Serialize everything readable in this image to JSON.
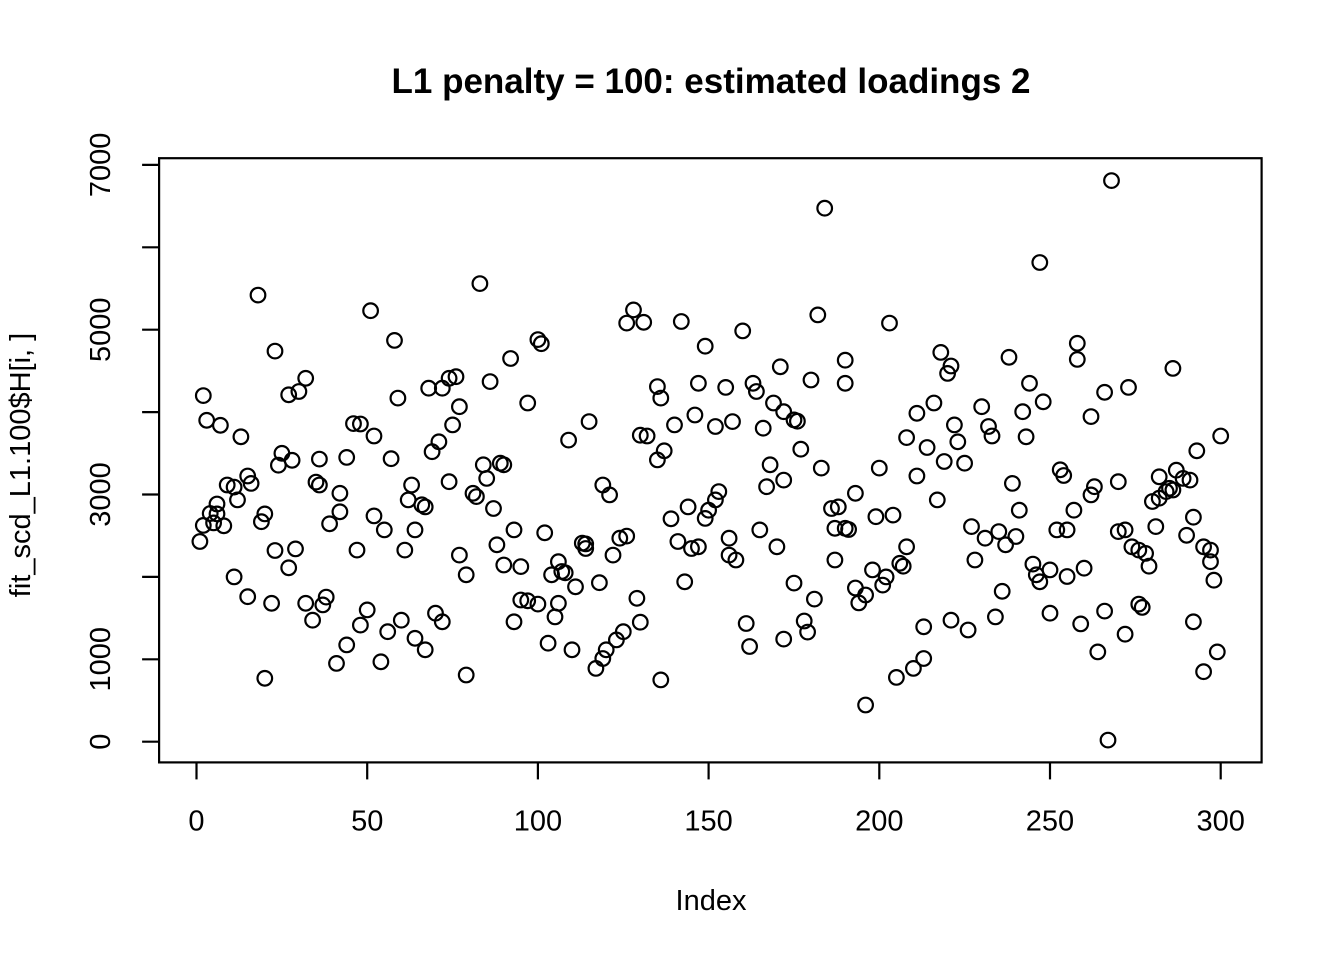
{
  "window": {
    "background": "#ffffff",
    "foreground": "#000000"
  },
  "chart_data": {
    "type": "scatter",
    "title": "L1 penalty = 100: estimated loadings 2",
    "xlabel": "Index",
    "ylabel": "fit_scd_L1.100$H[i, ]",
    "xlim": [
      0,
      300
    ],
    "ylim": [
      0,
      7000
    ],
    "x_ticks": [
      0,
      50,
      100,
      150,
      200,
      250,
      300
    ],
    "x_tick_labels": [
      "0",
      "50",
      "100",
      "150",
      "200",
      "250",
      "300"
    ],
    "y_ticks": [
      0,
      1000,
      2000,
      3000,
      4000,
      5000,
      6000,
      7000
    ],
    "y_tick_labels": [
      "0",
      "1000",
      "",
      "3000",
      "",
      "5000",
      "",
      "7000"
    ],
    "grid": false,
    "legend": null,
    "marker": "open-circle",
    "marker_color": "#000000",
    "points": [
      [
        1,
        2430
      ],
      [
        2,
        4200
      ],
      [
        2,
        2625
      ],
      [
        3,
        3900
      ],
      [
        4,
        2770
      ],
      [
        5,
        2655
      ],
      [
        6,
        2885
      ],
      [
        6,
        2765
      ],
      [
        7,
        3840
      ],
      [
        8,
        2620
      ],
      [
        9,
        3115
      ],
      [
        11,
        3090
      ],
      [
        11,
        2000
      ],
      [
        12,
        2935
      ],
      [
        13,
        3700
      ],
      [
        15,
        3225
      ],
      [
        15,
        1760
      ],
      [
        16,
        3135
      ],
      [
        18,
        5420
      ],
      [
        19,
        2670
      ],
      [
        20,
        2765
      ],
      [
        20,
        770
      ],
      [
        22,
        1680
      ],
      [
        23,
        4740
      ],
      [
        23,
        2320
      ],
      [
        24,
        3355
      ],
      [
        25,
        3500
      ],
      [
        27,
        4210
      ],
      [
        27,
        2110
      ],
      [
        28,
        3415
      ],
      [
        29,
        2340
      ],
      [
        30,
        4250
      ],
      [
        32,
        4410
      ],
      [
        32,
        1680
      ],
      [
        34,
        1475
      ],
      [
        35,
        3150
      ],
      [
        36,
        3430
      ],
      [
        36,
        3115
      ],
      [
        37,
        1660
      ],
      [
        38,
        1755
      ],
      [
        39,
        2645
      ],
      [
        41,
        950
      ],
      [
        42,
        3015
      ],
      [
        42,
        2790
      ],
      [
        44,
        3450
      ],
      [
        44,
        1175
      ],
      [
        46,
        3860
      ],
      [
        47,
        2325
      ],
      [
        48,
        3855
      ],
      [
        48,
        1415
      ],
      [
        50,
        1600
      ],
      [
        51,
        5230
      ],
      [
        52,
        3710
      ],
      [
        52,
        2740
      ],
      [
        54,
        970
      ],
      [
        55,
        2570
      ],
      [
        56,
        1335
      ],
      [
        57,
        3435
      ],
      [
        58,
        4870
      ],
      [
        59,
        4170
      ],
      [
        60,
        1475
      ],
      [
        61,
        2325
      ],
      [
        62,
        2935
      ],
      [
        63,
        3115
      ],
      [
        64,
        2570
      ],
      [
        64,
        1255
      ],
      [
        66,
        2875
      ],
      [
        67,
        2850
      ],
      [
        67,
        1115
      ],
      [
        68,
        4290
      ],
      [
        69,
        3520
      ],
      [
        70,
        1560
      ],
      [
        71,
        3640
      ],
      [
        72,
        4290
      ],
      [
        72,
        1455
      ],
      [
        74,
        4410
      ],
      [
        74,
        3155
      ],
      [
        75,
        3845
      ],
      [
        76,
        4430
      ],
      [
        77,
        4065
      ],
      [
        77,
        2265
      ],
      [
        79,
        2025
      ],
      [
        79,
        810
      ],
      [
        81,
        3015
      ],
      [
        82,
        2975
      ],
      [
        83,
        5560
      ],
      [
        84,
        3360
      ],
      [
        85,
        3195
      ],
      [
        86,
        4370
      ],
      [
        87,
        2830
      ],
      [
        88,
        2390
      ],
      [
        89,
        3380
      ],
      [
        90,
        3360
      ],
      [
        90,
        2145
      ],
      [
        92,
        4650
      ],
      [
        93,
        2570
      ],
      [
        93,
        1455
      ],
      [
        95,
        2125
      ],
      [
        95,
        1720
      ],
      [
        97,
        4110
      ],
      [
        97,
        1710
      ],
      [
        100,
        4880
      ],
      [
        100,
        1670
      ],
      [
        101,
        4830
      ],
      [
        102,
        2535
      ],
      [
        103,
        1195
      ],
      [
        104,
        2025
      ],
      [
        105,
        1515
      ],
      [
        106,
        2185
      ],
      [
        106,
        1680
      ],
      [
        107,
        2065
      ],
      [
        108,
        2050
      ],
      [
        109,
        3660
      ],
      [
        110,
        1115
      ],
      [
        111,
        1880
      ],
      [
        113,
        2410
      ],
      [
        114,
        2400
      ],
      [
        114,
        2345
      ],
      [
        115,
        3885
      ],
      [
        117,
        890
      ],
      [
        118,
        1930
      ],
      [
        119,
        3115
      ],
      [
        119,
        1010
      ],
      [
        120,
        1115
      ],
      [
        121,
        2995
      ],
      [
        122,
        2265
      ],
      [
        123,
        1235
      ],
      [
        124,
        2470
      ],
      [
        125,
        1335
      ],
      [
        126,
        5080
      ],
      [
        126,
        2495
      ],
      [
        128,
        5240
      ],
      [
        129,
        1740
      ],
      [
        130,
        3720
      ],
      [
        130,
        1450
      ],
      [
        131,
        5090
      ],
      [
        132,
        3710
      ],
      [
        135,
        4310
      ],
      [
        135,
        3420
      ],
      [
        136,
        4170
      ],
      [
        136,
        750
      ],
      [
        137,
        3530
      ],
      [
        139,
        2705
      ],
      [
        140,
        3845
      ],
      [
        141,
        2430
      ],
      [
        142,
        5100
      ],
      [
        143,
        1940
      ],
      [
        144,
        2850
      ],
      [
        145,
        2345
      ],
      [
        146,
        3965
      ],
      [
        147,
        4350
      ],
      [
        147,
        2365
      ],
      [
        149,
        4800
      ],
      [
        149,
        2710
      ],
      [
        150,
        2810
      ],
      [
        152,
        3825
      ],
      [
        152,
        2935
      ],
      [
        153,
        3035
      ],
      [
        155,
        4300
      ],
      [
        156,
        2470
      ],
      [
        156,
        2265
      ],
      [
        157,
        3885
      ],
      [
        158,
        2205
      ],
      [
        160,
        4985
      ],
      [
        161,
        1435
      ],
      [
        162,
        1155
      ],
      [
        163,
        4350
      ],
      [
        164,
        4250
      ],
      [
        165,
        2570
      ],
      [
        166,
        3805
      ],
      [
        167,
        3095
      ],
      [
        168,
        3360
      ],
      [
        169,
        4110
      ],
      [
        170,
        2365
      ],
      [
        171,
        4550
      ],
      [
        172,
        4005
      ],
      [
        172,
        3175
      ],
      [
        172,
        1245
      ],
      [
        175,
        3905
      ],
      [
        175,
        1925
      ],
      [
        176,
        3890
      ],
      [
        177,
        3550
      ],
      [
        178,
        1465
      ],
      [
        179,
        1330
      ],
      [
        180,
        4390
      ],
      [
        181,
        1730
      ],
      [
        182,
        5180
      ],
      [
        183,
        3320
      ],
      [
        184,
        6475
      ],
      [
        186,
        2830
      ],
      [
        187,
        2590
      ],
      [
        187,
        2205
      ],
      [
        188,
        2850
      ],
      [
        190,
        4630
      ],
      [
        190,
        4350
      ],
      [
        190,
        2590
      ],
      [
        191,
        2575
      ],
      [
        193,
        3015
      ],
      [
        193,
        1865
      ],
      [
        194,
        1685
      ],
      [
        196,
        1780
      ],
      [
        196,
        445
      ],
      [
        198,
        2085
      ],
      [
        199,
        2730
      ],
      [
        200,
        3320
      ],
      [
        201,
        1900
      ],
      [
        202,
        2000
      ],
      [
        203,
        5080
      ],
      [
        204,
        2750
      ],
      [
        205,
        780
      ],
      [
        206,
        2165
      ],
      [
        207,
        2130
      ],
      [
        208,
        3690
      ],
      [
        208,
        2365
      ],
      [
        210,
        890
      ],
      [
        211,
        3985
      ],
      [
        211,
        3225
      ],
      [
        213,
        1395
      ],
      [
        213,
        1010
      ],
      [
        214,
        3570
      ],
      [
        216,
        4110
      ],
      [
        217,
        2935
      ],
      [
        218,
        4725
      ],
      [
        219,
        3400
      ],
      [
        220,
        4470
      ],
      [
        221,
        4560
      ],
      [
        221,
        1475
      ],
      [
        222,
        3845
      ],
      [
        223,
        3640
      ],
      [
        225,
        3380
      ],
      [
        226,
        1355
      ],
      [
        227,
        2610
      ],
      [
        228,
        2205
      ],
      [
        230,
        4065
      ],
      [
        231,
        2470
      ],
      [
        232,
        3825
      ],
      [
        233,
        3710
      ],
      [
        234,
        1515
      ],
      [
        235,
        2550
      ],
      [
        236,
        1825
      ],
      [
        237,
        2390
      ],
      [
        238,
        4665
      ],
      [
        239,
        3135
      ],
      [
        240,
        2490
      ],
      [
        241,
        2810
      ],
      [
        242,
        4005
      ],
      [
        243,
        3700
      ],
      [
        244,
        4350
      ],
      [
        245,
        2155
      ],
      [
        246,
        2025
      ],
      [
        247,
        5815
      ],
      [
        247,
        1940
      ],
      [
        248,
        4125
      ],
      [
        250,
        2085
      ],
      [
        250,
        1560
      ],
      [
        252,
        2570
      ],
      [
        253,
        3300
      ],
      [
        254,
        3230
      ],
      [
        255,
        2570
      ],
      [
        255,
        2005
      ],
      [
        257,
        2810
      ],
      [
        258,
        4835
      ],
      [
        258,
        4640
      ],
      [
        259,
        1430
      ],
      [
        260,
        2105
      ],
      [
        262,
        3945
      ],
      [
        262,
        2995
      ],
      [
        263,
        3095
      ],
      [
        264,
        1090
      ],
      [
        266,
        4240
      ],
      [
        266,
        1585
      ],
      [
        267,
        20
      ],
      [
        268,
        6810
      ],
      [
        270,
        3155
      ],
      [
        270,
        2550
      ],
      [
        272,
        2570
      ],
      [
        272,
        1305
      ],
      [
        273,
        4300
      ],
      [
        274,
        2365
      ],
      [
        276,
        2325
      ],
      [
        276,
        1670
      ],
      [
        277,
        1630
      ],
      [
        278,
        2285
      ],
      [
        279,
        2130
      ],
      [
        280,
        2915
      ],
      [
        281,
        2610
      ],
      [
        282,
        3215
      ],
      [
        282,
        2955
      ],
      [
        284,
        3035
      ],
      [
        285,
        3075
      ],
      [
        286,
        4530
      ],
      [
        286,
        3055
      ],
      [
        287,
        3295
      ],
      [
        289,
        3195
      ],
      [
        290,
        2505
      ],
      [
        291,
        3175
      ],
      [
        292,
        2725
      ],
      [
        292,
        1455
      ],
      [
        293,
        3530
      ],
      [
        295,
        2365
      ],
      [
        295,
        850
      ],
      [
        297,
        2325
      ],
      [
        297,
        2185
      ],
      [
        298,
        1960
      ],
      [
        299,
        1090
      ],
      [
        300,
        3710
      ]
    ]
  }
}
